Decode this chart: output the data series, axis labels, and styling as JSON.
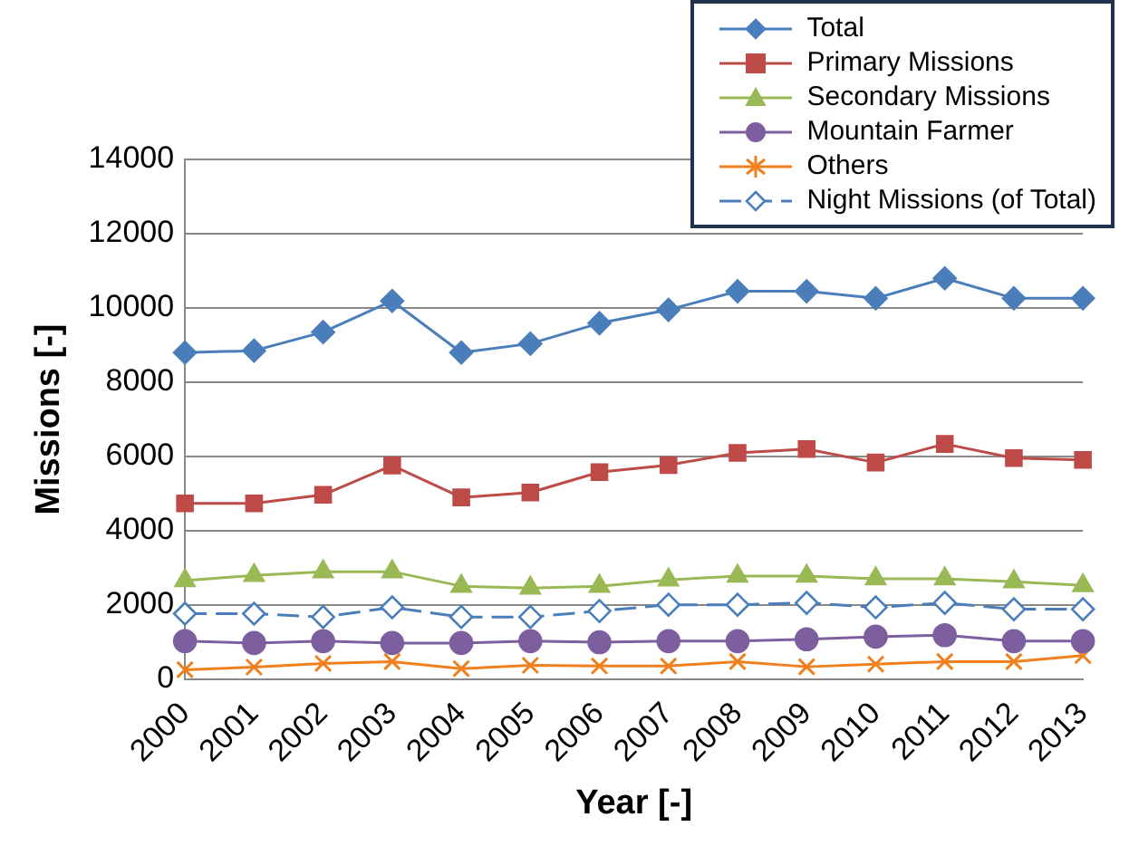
{
  "chart_data": {
    "type": "line",
    "xlabel": "Year [-]",
    "ylabel": "Missions [-]",
    "categories": [
      "2000",
      "2001",
      "2002",
      "2003",
      "2004",
      "2005",
      "2006",
      "2007",
      "2008",
      "2009",
      "2010",
      "2011",
      "2012",
      "2013"
    ],
    "series": [
      {
        "name": "Total",
        "color": "#4a7ebb",
        "marker": "diamond",
        "values": [
          8800,
          8850,
          9350,
          10190,
          8800,
          9040,
          9590,
          9950,
          10450,
          10450,
          10260,
          10800,
          10260,
          10260
        ]
      },
      {
        "name": "Primary Missions",
        "color": "#be4b48",
        "marker": "square",
        "values": [
          4740,
          4740,
          4970,
          5760,
          4900,
          5030,
          5580,
          5770,
          6100,
          6200,
          5840,
          6340,
          5960,
          5910
        ]
      },
      {
        "name": "Secondary Missions",
        "color": "#98b954",
        "marker": "triangle",
        "values": [
          2660,
          2800,
          2900,
          2900,
          2510,
          2460,
          2510,
          2680,
          2780,
          2780,
          2710,
          2710,
          2630,
          2530
        ]
      },
      {
        "name": "Mountain Farmer",
        "color": "#7d5fa0",
        "marker": "circle",
        "values": [
          1030,
          980,
          1030,
          980,
          980,
          1030,
          1000,
          1030,
          1030,
          1080,
          1150,
          1190,
          1030,
          1030
        ]
      },
      {
        "name": "Others",
        "color": "#f07f1e",
        "marker": "cross",
        "values": [
          260,
          330,
          430,
          480,
          290,
          380,
          360,
          360,
          480,
          340,
          410,
          480,
          480,
          640
        ]
      },
      {
        "name": "Night Missions (of Total)",
        "color": "#4a7ebb",
        "marker": "diamond",
        "line_style": "dashed",
        "values": [
          1770,
          1770,
          1680,
          1940,
          1680,
          1680,
          1840,
          2010,
          2010,
          2060,
          1940,
          2060,
          1890,
          1890
        ]
      }
    ],
    "ylim": [
      0,
      14000
    ],
    "yticks": [
      0,
      2000,
      4000,
      6000,
      8000,
      10000,
      12000,
      14000
    ],
    "grid": "y",
    "legend": "top right"
  }
}
